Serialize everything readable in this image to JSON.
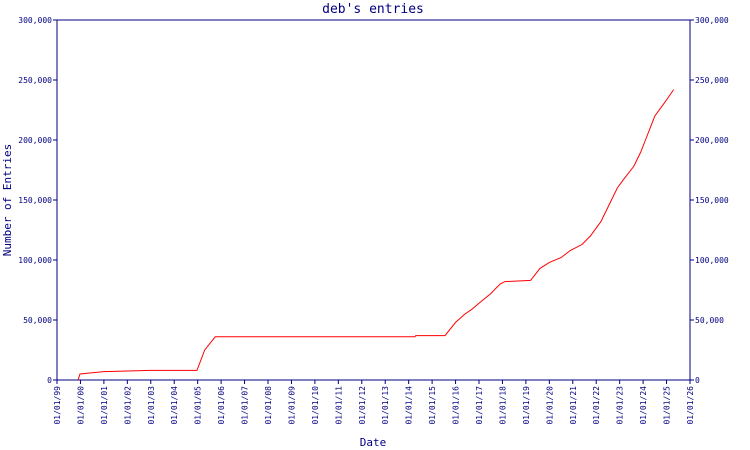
{
  "chart_data": {
    "type": "line",
    "title": "deb's entries",
    "x_label": "Date",
    "y_label": "Number of Entries",
    "xlim": [
      1999,
      2026
    ],
    "xticks": [
      {
        "value": 1999,
        "label": "01/01/99"
      },
      {
        "value": 2000,
        "label": "01/01/00"
      },
      {
        "value": 2001,
        "label": "01/01/01"
      },
      {
        "value": 2002,
        "label": "01/01/02"
      },
      {
        "value": 2003,
        "label": "01/01/03"
      },
      {
        "value": 2004,
        "label": "01/01/04"
      },
      {
        "value": 2005,
        "label": "01/01/05"
      },
      {
        "value": 2006,
        "label": "01/01/06"
      },
      {
        "value": 2007,
        "label": "01/01/07"
      },
      {
        "value": 2008,
        "label": "01/01/08"
      },
      {
        "value": 2009,
        "label": "01/01/09"
      },
      {
        "value": 2010,
        "label": "01/01/10"
      },
      {
        "value": 2011,
        "label": "01/01/11"
      },
      {
        "value": 2012,
        "label": "01/01/12"
      },
      {
        "value": 2013,
        "label": "01/01/13"
      },
      {
        "value": 2014,
        "label": "01/01/14"
      },
      {
        "value": 2015,
        "label": "01/01/15"
      },
      {
        "value": 2016,
        "label": "01/01/16"
      },
      {
        "value": 2017,
        "label": "01/01/17"
      },
      {
        "value": 2018,
        "label": "01/01/18"
      },
      {
        "value": 2019,
        "label": "01/01/19"
      },
      {
        "value": 2020,
        "label": "01/01/20"
      },
      {
        "value": 2021,
        "label": "01/01/21"
      },
      {
        "value": 2022,
        "label": "01/01/22"
      },
      {
        "value": 2023,
        "label": "01/01/23"
      },
      {
        "value": 2024,
        "label": "01/01/24"
      },
      {
        "value": 2025,
        "label": "01/01/25"
      },
      {
        "value": 2026,
        "label": "01/01/26"
      }
    ],
    "ylim": [
      0,
      300000
    ],
    "yticks": [
      0,
      {
        "value": 50000,
        "label": "50,000"
      },
      {
        "value": 100000,
        "label": "100,000"
      },
      {
        "value": 150000,
        "label": "150,000"
      },
      {
        "value": 200000,
        "label": "200,000"
      },
      {
        "value": 250000,
        "label": "250,000"
      },
      {
        "value": 300000,
        "label": "300,000"
      }
    ],
    "axis_color": "#000080",
    "series": [
      {
        "color": "#ff0000",
        "x": [
          1999.9,
          1999.98,
          2000.5,
          2001,
          2003,
          2004.97,
          2005.3,
          2005.75,
          2014.27,
          2014.3,
          2015.55,
          2016,
          2016.4,
          2016.7,
          2017,
          2017.5,
          2017.9,
          2018.1,
          2019.2,
          2019.6,
          2020,
          2020.5,
          2020.9,
          2021.4,
          2021.75,
          2022.2,
          2022.6,
          2022.9,
          2023.2,
          2023.6,
          2023.9,
          2024.2,
          2024.5,
          2024.95,
          2025.3
        ],
        "values": [
          0,
          5000,
          6000,
          7000,
          8000,
          8000,
          25000,
          36000,
          36000,
          37000,
          37000,
          48000,
          55000,
          59000,
          64000,
          72000,
          80000,
          82000,
          83000,
          93000,
          98000,
          102000,
          108000,
          113000,
          120000,
          132000,
          148000,
          160000,
          168000,
          178000,
          190000,
          205000,
          220000,
          232000,
          242000
        ]
      }
    ]
  }
}
